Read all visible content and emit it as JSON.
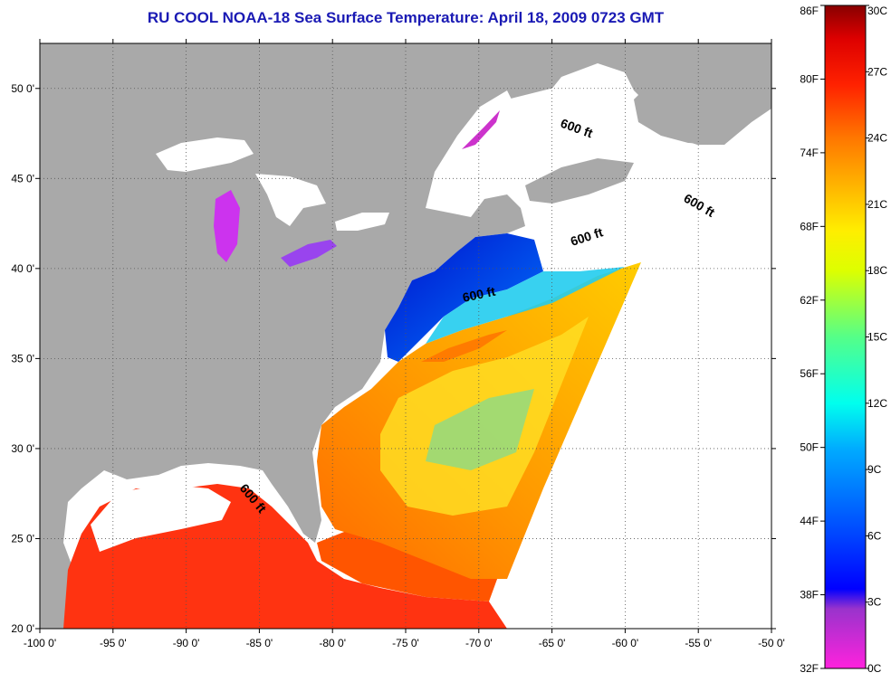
{
  "title": "RU COOL  NOAA-18  Sea Surface Temperature:  April 18, 2009 0723 GMT",
  "map": {
    "lon_range": [
      -100,
      -50
    ],
    "lat_range": [
      20,
      52.5
    ],
    "lon_ticks": [
      "-100 0'",
      "-95 0'",
      "-90 0'",
      "-85 0'",
      "-80 0'",
      "-75 0'",
      "-70 0'",
      "-65 0'",
      "-60 0'",
      "-55 0'",
      "-50 0'"
    ],
    "lat_ticks": [
      "20 0'",
      "25 0'",
      "30 0'",
      "35 0'",
      "40 0'",
      "45 0'",
      "50 0'"
    ],
    "contour_label": "600 ft",
    "colors": {
      "land": "#a9a9a9",
      "no_data": "#ffffff",
      "grid": "#555555"
    }
  },
  "colorbar": {
    "fahrenheit": [
      "86F",
      "80F",
      "74F",
      "68F",
      "62F",
      "56F",
      "50F",
      "44F",
      "38F",
      "32F"
    ],
    "celsius": [
      "30C",
      "27C",
      "24C",
      "21C",
      "18C",
      "15C",
      "12C",
      "9C",
      "6C",
      "3C",
      "0C"
    ]
  }
}
